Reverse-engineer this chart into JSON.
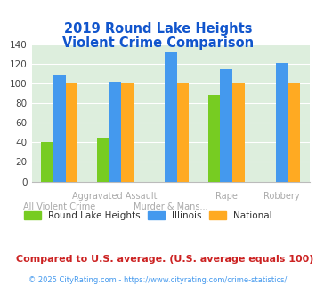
{
  "title_line1": "2019 Round Lake Heights",
  "title_line2": "Violent Crime Comparison",
  "categories": [
    "All Violent Crime",
    "Aggravated Assault",
    "Murder & Mans...",
    "Rape",
    "Robbery"
  ],
  "xtick_top": [
    "",
    "Aggravated Assault",
    "",
    "Rape",
    "Robbery"
  ],
  "xtick_bottom": [
    "All Violent Crime",
    "",
    "Murder & Mans...",
    "",
    ""
  ],
  "series": {
    "Round Lake Heights": [
      40,
      45,
      0,
      88,
      0
    ],
    "Illinois": [
      108,
      102,
      131,
      114,
      121
    ],
    "National": [
      100,
      100,
      100,
      100,
      100
    ]
  },
  "colors": {
    "Round Lake Heights": "#77cc22",
    "Illinois": "#4499ee",
    "National": "#ffaa22"
  },
  "ylim": [
    0,
    140
  ],
  "yticks": [
    0,
    20,
    40,
    60,
    80,
    100,
    120,
    140
  ],
  "title_color": "#1155cc",
  "xtick_color": "#aaaaaa",
  "background_color": "#ddeedd",
  "footer_text": "Compared to U.S. average. (U.S. average equals 100)",
  "footer_color": "#cc2222",
  "copyright_text": "© 2025 CityRating.com - https://www.cityrating.com/crime-statistics/",
  "copyright_color": "#4499ee",
  "legend_labels": [
    "Round Lake Heights",
    "Illinois",
    "National"
  ]
}
